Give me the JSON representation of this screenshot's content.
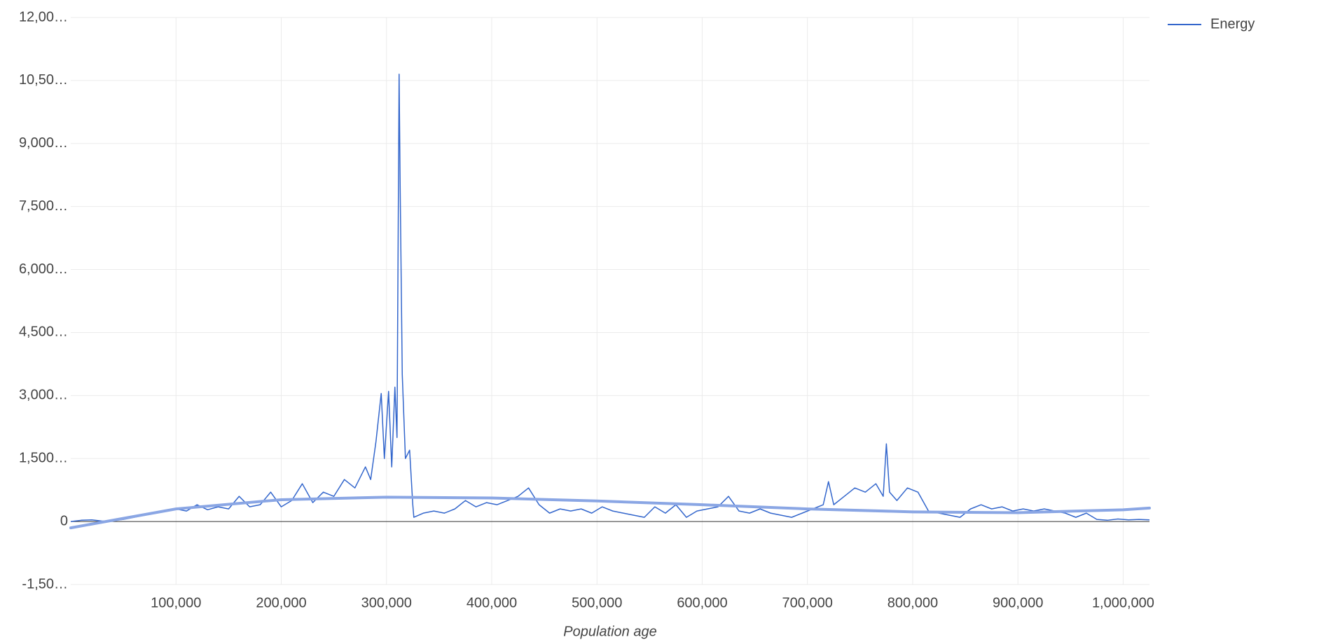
{
  "chart_data": {
    "type": "line",
    "x_label": "Population age",
    "xlim": [
      0,
      1025000
    ],
    "ylim": [
      -1500,
      12000
    ],
    "xticks": [
      {
        "value": 100000,
        "label": "100,000"
      },
      {
        "value": 200000,
        "label": "200,000"
      },
      {
        "value": 300000,
        "label": "300,000"
      },
      {
        "value": 400000,
        "label": "400,000"
      },
      {
        "value": 500000,
        "label": "500,000"
      },
      {
        "value": 600000,
        "label": "600,000"
      },
      {
        "value": 700000,
        "label": "700,000"
      },
      {
        "value": 800000,
        "label": "800,000"
      },
      {
        "value": 900000,
        "label": "900,000"
      },
      {
        "value": 1000000,
        "label": "1,000,000"
      }
    ],
    "yticks": [
      {
        "value": -1500,
        "label": "-1,50…"
      },
      0,
      {
        "value": 1500,
        "label": "1,500…"
      },
      {
        "value": 3000,
        "label": "3,000…"
      },
      {
        "value": 4500,
        "label": "4,500…"
      },
      {
        "value": 6000,
        "label": "6,000…"
      },
      {
        "value": 7500,
        "label": "7,500…"
      },
      {
        "value": 9000,
        "label": "9,000…"
      },
      {
        "value": 10500,
        "label": "10,50…"
      },
      {
        "value": 12000,
        "label": "12,00…"
      }
    ],
    "grid": true,
    "legend": "right",
    "x": [
      0,
      10000,
      20000,
      30000,
      40000,
      50000,
      60000,
      70000,
      80000,
      90000,
      100000,
      110000,
      120000,
      130000,
      140000,
      150000,
      160000,
      170000,
      180000,
      190000,
      200000,
      210000,
      220000,
      230000,
      240000,
      250000,
      260000,
      270000,
      280000,
      285000,
      290000,
      295000,
      298000,
      302000,
      305000,
      308000,
      310000,
      312000,
      313000,
      315000,
      318000,
      322000,
      325000,
      326000,
      335000,
      345000,
      355000,
      365000,
      375000,
      385000,
      395000,
      405000,
      415000,
      425000,
      435000,
      445000,
      455000,
      465000,
      475000,
      485000,
      495000,
      505000,
      515000,
      525000,
      535000,
      545000,
      555000,
      565000,
      575000,
      585000,
      595000,
      605000,
      615000,
      625000,
      635000,
      645000,
      655000,
      665000,
      675000,
      685000,
      695000,
      705000,
      715000,
      720000,
      725000,
      735000,
      745000,
      755000,
      765000,
      772000,
      775000,
      778000,
      785000,
      795000,
      805000,
      815000,
      825000,
      835000,
      845000,
      855000,
      865000,
      875000,
      885000,
      895000,
      905000,
      915000,
      925000,
      935000,
      945000,
      955000,
      965000,
      975000,
      985000,
      995000,
      1005000,
      1015000,
      1025000
    ],
    "series": [
      {
        "name": "Energy",
        "color": "#3366cc",
        "values": [
          0,
          30,
          40,
          10,
          20,
          50,
          100,
          150,
          200,
          250,
          300,
          250,
          400,
          280,
          350,
          300,
          600,
          350,
          400,
          700,
          350,
          500,
          900,
          450,
          700,
          600,
          1000,
          800,
          1300,
          1000,
          1900,
          3050,
          1500,
          3100,
          1300,
          3200,
          2000,
          10650,
          8000,
          3500,
          1500,
          1700,
          400,
          100,
          200,
          250,
          200,
          300,
          500,
          350,
          450,
          400,
          500,
          600,
          800,
          400,
          200,
          300,
          250,
          300,
          200,
          350,
          250,
          200,
          150,
          100,
          350,
          200,
          400,
          100,
          250,
          300,
          350,
          600,
          250,
          200,
          300,
          200,
          150,
          100,
          200,
          300,
          400,
          950,
          400,
          600,
          800,
          700,
          900,
          600,
          1850,
          700,
          500,
          800,
          700,
          250,
          200,
          150,
          100,
          300,
          400,
          300,
          350,
          250,
          300,
          250,
          300,
          250,
          200,
          100,
          200,
          50,
          30,
          60,
          40,
          50,
          40
        ]
      }
    ],
    "trendline": {
      "color": "#8aa6e4",
      "x": [
        0,
        100000,
        200000,
        300000,
        400000,
        500000,
        600000,
        700000,
        800000,
        900000,
        1000000,
        1025000
      ],
      "values": [
        -150,
        300,
        520,
        580,
        560,
        490,
        400,
        300,
        230,
        210,
        280,
        320
      ]
    }
  }
}
